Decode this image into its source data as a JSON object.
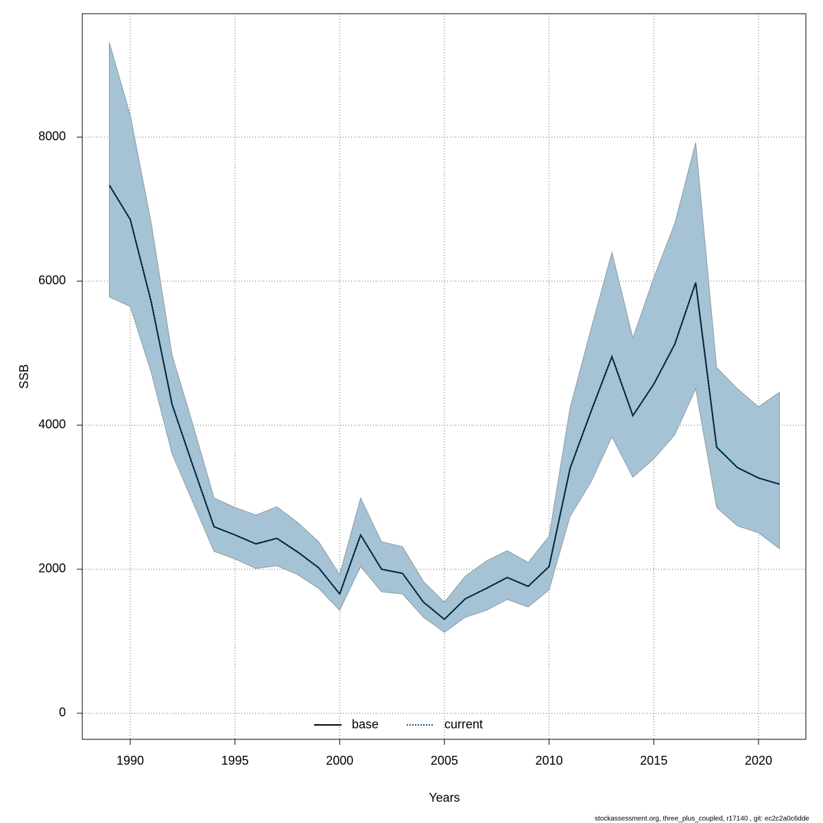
{
  "chart_data": {
    "type": "line",
    "xlabel": "Years",
    "ylabel": "SSB",
    "footer": "stockassessment.org, three_plus_coupled, r17140 , git: ec2c2a0c6dde",
    "x": [
      1989,
      1990,
      1991,
      1992,
      1993,
      1994,
      1995,
      1996,
      1997,
      1998,
      1999,
      2000,
      2001,
      2002,
      2003,
      2004,
      2005,
      2006,
      2007,
      2008,
      2009,
      2010,
      2011,
      2012,
      2013,
      2014,
      2015,
      2016,
      2017,
      2018,
      2019,
      2020,
      2021
    ],
    "series": [
      {
        "name": "base",
        "color": "#000000",
        "dash": false,
        "values": [
          7333,
          6857,
          5714,
          4286,
          3429,
          2590,
          2476,
          2352,
          2429,
          2238,
          2019,
          1657,
          2476,
          2000,
          1943,
          1543,
          1305,
          1590,
          1733,
          1886,
          1762,
          2038,
          3400,
          4190,
          4952,
          4133,
          4571,
          5124,
          5981,
          3695,
          3410,
          3267,
          3181
        ]
      },
      {
        "name": "current",
        "color": "#00527a",
        "dash": true,
        "values": [
          7333,
          6857,
          5714,
          4286,
          3429,
          2590,
          2476,
          2352,
          2429,
          2238,
          2019,
          1657,
          2476,
          2000,
          1943,
          1543,
          1305,
          1590,
          1733,
          1886,
          1762,
          2038,
          3400,
          4190,
          4952,
          4133,
          4571,
          5124,
          5981,
          3695,
          3410,
          3267,
          3181
        ]
      }
    ],
    "interval": {
      "color": "#a5c3d4",
      "upper": [
        9314,
        8305,
        6810,
        4971,
        4000,
        2990,
        2857,
        2752,
        2867,
        2648,
        2381,
        1924,
        2990,
        2381,
        2314,
        1829,
        1543,
        1905,
        2114,
        2257,
        2095,
        2457,
        4238,
        5333,
        6400,
        5210,
        6048,
        6800,
        7924,
        4800,
        4505,
        4257,
        4457
      ],
      "lower": [
        5781,
        5648,
        4733,
        3600,
        2924,
        2248,
        2143,
        2010,
        2048,
        1924,
        1733,
        1429,
        2038,
        1686,
        1657,
        1333,
        1124,
        1333,
        1429,
        1581,
        1476,
        1714,
        2733,
        3210,
        3838,
        3276,
        3533,
        3867,
        4505,
        2857,
        2600,
        2505,
        2286
      ]
    },
    "xlim": [
      1987.71,
      2022.26
    ],
    "ylim": [
      -362,
      9714
    ],
    "xticks": [
      1990,
      1995,
      2000,
      2005,
      2010,
      2015,
      2020
    ],
    "yticks": [
      0,
      2000,
      4000,
      6000,
      8000
    ],
    "grid": true,
    "legend": "bottom"
  }
}
